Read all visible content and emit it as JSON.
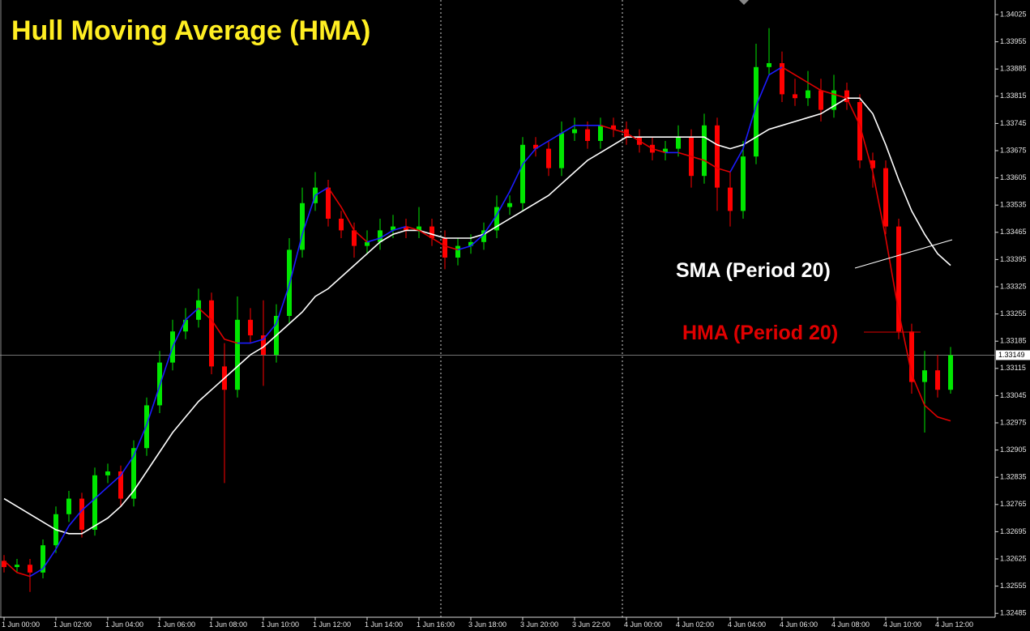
{
  "chart_data": {
    "type": "candlestick",
    "title": "Hull Moving Average (HMA)",
    "categories": [
      "1 Jun 00:00",
      null,
      null,
      null,
      "1 Jun 02:00",
      null,
      null,
      null,
      "1 Jun 04:00",
      null,
      null,
      null,
      "1 Jun 06:00",
      null,
      null,
      null,
      "1 Jun 08:00",
      null,
      null,
      null,
      "1 Jun 10:00",
      null,
      null,
      null,
      "1 Jun 12:00",
      null,
      null,
      null,
      "1 Jun 14:00",
      null,
      null,
      null,
      "1 Jun 16:00",
      null,
      null,
      null,
      "3 Jun 18:00",
      null,
      null,
      null,
      "3 Jun 20:00",
      null,
      null,
      null,
      "3 Jun 22:00",
      null,
      null,
      null,
      "4 Jun 00:00",
      null,
      null,
      null,
      "4 Jun 02:00",
      null,
      null,
      null,
      "4 Jun 04:00",
      null,
      null,
      null,
      "4 Jun 06:00",
      null,
      null,
      null,
      "4 Jun 08:00",
      null,
      null,
      null,
      "4 Jun 10:00",
      null,
      null,
      null,
      "4 Jun 12:00",
      null
    ],
    "open": [
      1.3262,
      1.32604,
      1.3261,
      1.3259,
      1.3266,
      1.3274,
      1.3278,
      1.327,
      1.3284,
      1.3285,
      1.3278,
      1.3291,
      1.3302,
      1.3313,
      1.3321,
      1.3324,
      1.3329,
      1.3312,
      1.3306,
      1.3324,
      1.332,
      1.3315,
      1.3325,
      1.3342,
      1.3354,
      1.3358,
      1.335,
      1.3347,
      1.3343,
      1.3344,
      1.3347,
      1.3348,
      1.3347,
      1.3348,
      1.3345,
      1.334,
      1.3343,
      1.3344,
      1.3347,
      1.3353,
      1.3354,
      1.3369,
      1.3368,
      1.3363,
      1.3372,
      1.3373,
      1.337,
      1.3374,
      1.3373,
      1.3371,
      1.3369,
      1.3367,
      1.3368,
      1.3371,
      1.3361,
      1.3374,
      1.3358,
      1.3352,
      1.3366,
      1.3389,
      1.339,
      1.3382,
      1.3381,
      1.3383,
      1.3378,
      1.3383,
      1.338,
      1.3365,
      1.3363,
      1.3348,
      1.3321,
      1.3308,
      1.3311,
      1.3306
    ],
    "high": [
      1.32635,
      1.32625,
      1.32625,
      1.32675,
      1.3276,
      1.328,
      1.32795,
      1.3286,
      1.3287,
      1.32865,
      1.3293,
      1.3304,
      1.3316,
      1.3324,
      1.3327,
      1.3332,
      1.3331,
      1.3318,
      1.333,
      1.3327,
      1.3329,
      1.3328,
      1.3345,
      1.3358,
      1.3362,
      1.336,
      1.3352,
      1.3349,
      1.3347,
      1.335,
      1.3351,
      1.335,
      1.3353,
      1.335,
      1.3347,
      1.3345,
      1.3346,
      1.3349,
      1.3356,
      1.3356,
      1.3371,
      1.3371,
      1.337,
      1.3375,
      1.3376,
      1.3375,
      1.3376,
      1.3376,
      1.3375,
      1.3373,
      1.3371,
      1.337,
      1.3374,
      1.3373,
      1.3377,
      1.3376,
      1.3362,
      1.337,
      1.3395,
      1.3399,
      1.3393,
      1.3386,
      1.3388,
      1.3386,
      1.3387,
      1.3385,
      1.3382,
      1.3367,
      1.3365,
      1.335,
      1.3323,
      1.3316,
      1.3315,
      1.3317
    ],
    "low": [
      1.3259,
      1.3259,
      1.3254,
      1.32575,
      1.3264,
      1.3272,
      1.3268,
      1.32685,
      1.3282,
      1.3276,
      1.3276,
      1.3289,
      1.33,
      1.3311,
      1.3319,
      1.3322,
      1.331,
      1.3282,
      1.3304,
      1.3318,
      1.3307,
      1.3313,
      1.3323,
      1.334,
      1.3352,
      1.3348,
      1.3345,
      1.334,
      1.3341,
      1.3342,
      1.3345,
      1.3345,
      1.3345,
      1.3343,
      1.3337,
      1.3338,
      1.3341,
      1.3342,
      1.3345,
      1.3351,
      1.3352,
      1.3366,
      1.3361,
      1.3361,
      1.337,
      1.3368,
      1.3368,
      1.3371,
      1.3369,
      1.3367,
      1.3365,
      1.3365,
      1.3366,
      1.3358,
      1.3359,
      1.3352,
      1.3348,
      1.335,
      1.3364,
      1.3387,
      1.338,
      1.3379,
      1.3379,
      1.3375,
      1.3376,
      1.3378,
      1.3363,
      1.3358,
      1.3346,
      1.3319,
      1.3305,
      1.3295,
      1.3304,
      1.3305
    ],
    "close": [
      1.32604,
      1.3261,
      1.3259,
      1.3266,
      1.3274,
      1.3278,
      1.327,
      1.3284,
      1.3285,
      1.3278,
      1.3291,
      1.3302,
      1.3313,
      1.3321,
      1.3324,
      1.3329,
      1.3312,
      1.3306,
      1.3324,
      1.332,
      1.3315,
      1.3325,
      1.3342,
      1.3354,
      1.3358,
      1.335,
      1.3347,
      1.3343,
      1.3344,
      1.3347,
      1.3348,
      1.3347,
      1.3348,
      1.3345,
      1.334,
      1.3343,
      1.3344,
      1.3347,
      1.3353,
      1.3354,
      1.3369,
      1.3368,
      1.3363,
      1.3372,
      1.3373,
      1.337,
      1.3374,
      1.3373,
      1.3371,
      1.3369,
      1.3367,
      1.3368,
      1.3371,
      1.3361,
      1.3374,
      1.3358,
      1.3352,
      1.3366,
      1.3389,
      1.339,
      1.3382,
      1.3381,
      1.3383,
      1.3378,
      1.3383,
      1.338,
      1.3365,
      1.3363,
      1.3348,
      1.3321,
      1.3308,
      1.3311,
      1.3306,
      1.33149
    ],
    "up_color": "#00e600",
    "down_color": "#ff0000",
    "series": [
      {
        "name": "SMA (Period 20)",
        "color": "#ffffff",
        "values": [
          1.3278,
          1.3276,
          1.3274,
          1.3272,
          1.327,
          1.3269,
          1.3269,
          1.3271,
          1.3273,
          1.3276,
          1.328,
          1.3285,
          1.329,
          1.3295,
          1.3299,
          1.3303,
          1.3306,
          1.3309,
          1.3312,
          1.3315,
          1.3317,
          1.332,
          1.3323,
          1.3326,
          1.333,
          1.3332,
          1.3335,
          1.3338,
          1.3341,
          1.3344,
          1.3346,
          1.3347,
          1.3347,
          1.3346,
          1.3345,
          1.3345,
          1.3345,
          1.3346,
          1.3348,
          1.335,
          1.3352,
          1.3354,
          1.3356,
          1.3359,
          1.3362,
          1.3365,
          1.3367,
          1.3369,
          1.3371,
          1.3371,
          1.3371,
          1.3371,
          1.3371,
          1.3371,
          1.3371,
          1.3369,
          1.3368,
          1.3369,
          1.3371,
          1.3373,
          1.3374,
          1.3375,
          1.3376,
          1.3377,
          1.3379,
          1.3381,
          1.3381,
          1.3377,
          1.3369,
          1.336,
          1.3352,
          1.3346,
          1.3341,
          1.3338
        ]
      },
      {
        "name": "HMA (Period 20)",
        "color": "#e00000",
        "rising_color": "#1c1cff",
        "values": [
          1.3262,
          1.3259,
          1.3258,
          1.326,
          1.3265,
          1.3271,
          1.3275,
          1.3278,
          1.3281,
          1.3284,
          1.3289,
          1.3297,
          1.3307,
          1.3317,
          1.3324,
          1.3327,
          1.3324,
          1.3319,
          1.3318,
          1.3318,
          1.3319,
          1.3323,
          1.3333,
          1.3346,
          1.3356,
          1.3358,
          1.3353,
          1.3347,
          1.3344,
          1.3345,
          1.3347,
          1.3348,
          1.3347,
          1.3345,
          1.3343,
          1.3342,
          1.3343,
          1.3346,
          1.3351,
          1.3357,
          1.3364,
          1.3368,
          1.337,
          1.3372,
          1.3374,
          1.3374,
          1.3374,
          1.3373,
          1.3372,
          1.337,
          1.3368,
          1.3367,
          1.3367,
          1.3366,
          1.3365,
          1.3363,
          1.3362,
          1.3368,
          1.3379,
          1.3387,
          1.3389,
          1.3387,
          1.3385,
          1.3383,
          1.3382,
          1.3381,
          1.3374,
          1.3362,
          1.3345,
          1.3326,
          1.331,
          1.3302,
          1.3299,
          1.3298
        ]
      }
    ],
    "current_price": 1.33149,
    "ylim": [
      1.32475,
      1.340625
    ],
    "yticks": [
      1.34025,
      1.33955,
      1.33885,
      1.33815,
      1.33745,
      1.33675,
      1.33605,
      1.33535,
      1.33465,
      1.33395,
      1.33325,
      1.33255,
      1.33185,
      1.33115,
      1.33045,
      1.32975,
      1.32905,
      1.32835,
      1.32765,
      1.32695,
      1.32625,
      1.32555,
      1.32485
    ]
  }
}
